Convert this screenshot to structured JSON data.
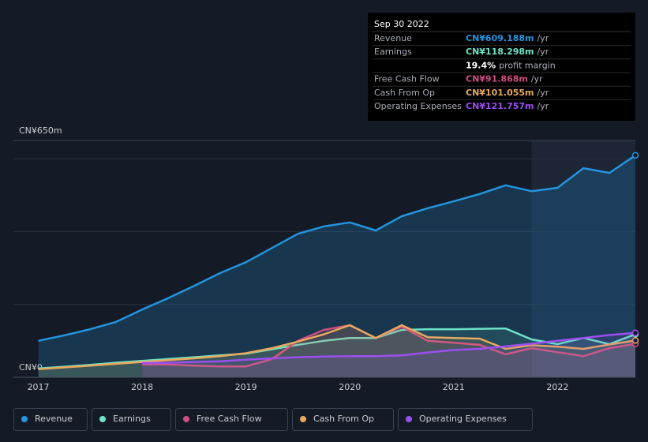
{
  "chart_data": {
    "type": "line",
    "x": [
      2017,
      2017.25,
      2017.5,
      2017.75,
      2018,
      2018.25,
      2018.5,
      2018.75,
      2019,
      2019.25,
      2019.5,
      2019.75,
      2020,
      2020.25,
      2020.5,
      2020.75,
      2021,
      2021.25,
      2021.5,
      2021.75,
      2022,
      2022.25,
      2022.5,
      2022.75
    ],
    "xlim": [
      2016.76,
      2022.75
    ],
    "xticks": [
      2017,
      2018,
      2019,
      2020,
      2021,
      2022
    ],
    "ylim": [
      0,
      650
    ],
    "yticks": [
      {
        "value": 0,
        "label": "CN¥0"
      },
      {
        "value": 650,
        "label": "CN¥650m"
      }
    ],
    "ygrid": [
      200,
      400,
      600
    ],
    "highlight": [
      2021.75,
      2022.75
    ],
    "series": [
      {
        "name": "Revenue",
        "color": "#2394df",
        "values": [
          100,
          115,
          132,
          152,
          186,
          217,
          251,
          286,
          316,
          355,
          394,
          414,
          425,
          403,
          442,
          464,
          483,
          503,
          527,
          511,
          520,
          574,
          561,
          609.188
        ]
      },
      {
        "name": "Earnings",
        "color": "#6de3c8",
        "values": [
          24,
          29,
          34,
          40,
          45,
          50,
          55,
          60,
          65,
          77,
          89,
          100,
          108,
          108,
          130,
          132,
          132,
          133,
          134,
          104,
          91,
          108,
          91,
          118.298
        ]
      },
      {
        "name": "Free Cash Flow",
        "color": "#d14d83",
        "values": [
          null,
          null,
          null,
          null,
          35,
          35,
          32,
          30,
          30,
          50,
          100,
          130,
          143,
          108,
          139,
          100,
          95,
          89,
          63,
          80,
          69,
          58,
          80,
          91.868
        ]
      },
      {
        "name": "Cash From Op",
        "color": "#e8a95d",
        "values": [
          22,
          27,
          32,
          37,
          42,
          47,
          52,
          58,
          66,
          80,
          98,
          118,
          143,
          108,
          143,
          110,
          108,
          106,
          78,
          88,
          84,
          78,
          90,
          101.055
        ]
      },
      {
        "name": "Operating Expenses",
        "color": "#9b4ff0",
        "values": [
          null,
          null,
          null,
          null,
          39,
          40,
          42,
          44,
          48,
          52,
          55,
          57,
          58,
          58,
          60,
          68,
          75,
          78,
          85,
          92,
          100,
          108,
          116,
          121.757
        ]
      }
    ],
    "tooltip": {
      "date": "Sep 30 2022",
      "rows": [
        {
          "label": "Revenue",
          "value": "CN¥609.188m",
          "unit": "/yr",
          "color": "#2394df"
        },
        {
          "label": "Earnings",
          "value": "CN¥118.298m",
          "unit": "/yr",
          "color": "#6de3c8"
        },
        {
          "value": "19.4%",
          "unit": "profit margin",
          "color": "#ffffff"
        },
        {
          "label": "Free Cash Flow",
          "value": "CN¥91.868m",
          "unit": "/yr",
          "color": "#d14d83"
        },
        {
          "label": "Cash From Op",
          "value": "CN¥101.055m",
          "unit": "/yr",
          "color": "#e8a95d"
        },
        {
          "label": "Operating Expenses",
          "value": "CN¥121.757m",
          "unit": "/yr",
          "color": "#9b4ff0"
        }
      ]
    }
  }
}
